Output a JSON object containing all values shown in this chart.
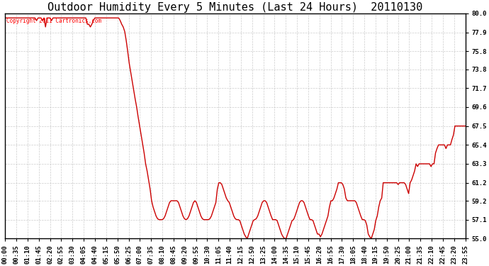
{
  "title": "Outdoor Humidity Every 5 Minutes (Last 24 Hours)  20110130",
  "copyright_text": "Copyright 2011 Cartronics.com",
  "line_color": "#cc0000",
  "bg_color": "#ffffff",
  "plot_bg_color": "#ffffff",
  "grid_color": "#c0c0c0",
  "ylim": [
    55.0,
    80.0
  ],
  "yticks": [
    55.0,
    57.1,
    59.2,
    61.2,
    63.3,
    65.4,
    67.5,
    69.6,
    71.7,
    73.8,
    75.8,
    77.9,
    80.0
  ],
  "title_fontsize": 11,
  "tick_fontsize": 6.5,
  "humidity": [
    79.5,
    79.5,
    79.5,
    79.5,
    79.5,
    79.5,
    79.5,
    79.5,
    79.5,
    79.5,
    79.5,
    79.5,
    79.5,
    79.5,
    79.5,
    79.5,
    79.5,
    79.5,
    79.5,
    79.5,
    79.5,
    79.2,
    79.5,
    79.5,
    79.5,
    79.2,
    79.5,
    78.5,
    79.5,
    79.5,
    79.5,
    79.2,
    79.5,
    79.5,
    79.5,
    79.5,
    79.5,
    79.5,
    79.5,
    79.5,
    79.5,
    79.5,
    79.5,
    79.5,
    79.5,
    79.5,
    79.5,
    79.5,
    79.5,
    79.5,
    79.5,
    79.5,
    79.5,
    79.5,
    79.5,
    78.8,
    78.8,
    78.5,
    78.8,
    79.2,
    79.5,
    79.5,
    79.5,
    79.5,
    79.5,
    79.5,
    79.5,
    79.5,
    79.5,
    79.5,
    79.5,
    79.5,
    79.5,
    79.5,
    79.5,
    79.5,
    79.5,
    79.2,
    78.8,
    78.5,
    78.0,
    77.0,
    75.8,
    74.5,
    73.5,
    72.5,
    71.5,
    70.5,
    69.6,
    68.5,
    67.5,
    66.5,
    65.5,
    64.5,
    63.3,
    62.5,
    61.5,
    60.5,
    59.2,
    58.5,
    58.0,
    57.5,
    57.2,
    57.1,
    57.1,
    57.1,
    57.2,
    57.5,
    58.0,
    58.5,
    59.0,
    59.2,
    59.2,
    59.2,
    59.2,
    59.2,
    59.0,
    58.5,
    58.0,
    57.5,
    57.2,
    57.1,
    57.2,
    57.5,
    58.0,
    58.5,
    59.0,
    59.2,
    59.0,
    58.5,
    58.0,
    57.5,
    57.2,
    57.1,
    57.1,
    57.1,
    57.1,
    57.2,
    57.5,
    58.0,
    58.5,
    59.0,
    60.5,
    61.2,
    61.2,
    61.0,
    60.5,
    60.0,
    59.5,
    59.2,
    59.0,
    58.5,
    58.0,
    57.5,
    57.2,
    57.1,
    57.1,
    57.0,
    56.5,
    56.0,
    55.5,
    55.2,
    55.0,
    55.5,
    56.0,
    56.5,
    57.0,
    57.1,
    57.2,
    57.5,
    58.0,
    58.5,
    59.0,
    59.2,
    59.2,
    59.0,
    58.5,
    58.0,
    57.5,
    57.1,
    57.1,
    57.1,
    57.0,
    56.5,
    56.0,
    55.5,
    55.2,
    55.0,
    55.0,
    55.5,
    56.0,
    56.5,
    57.0,
    57.1,
    57.5,
    58.0,
    58.5,
    59.0,
    59.2,
    59.2,
    59.0,
    58.5,
    58.0,
    57.5,
    57.1,
    57.1,
    57.0,
    56.5,
    56.0,
    55.5,
    55.5,
    55.2,
    55.5,
    56.0,
    56.5,
    57.0,
    57.5,
    58.5,
    59.2,
    59.2,
    59.5,
    60.0,
    60.5,
    61.2,
    61.2,
    61.2,
    61.0,
    60.5,
    59.5,
    59.2,
    59.2,
    59.2,
    59.2,
    59.2,
    59.2,
    59.0,
    58.5,
    58.0,
    57.5,
    57.1,
    57.1,
    57.0,
    56.5,
    55.5,
    55.2,
    55.0,
    55.5,
    56.0,
    57.0,
    57.5,
    58.5,
    59.2,
    59.5,
    61.2,
    61.2,
    61.2,
    61.2,
    61.2,
    61.2,
    61.2,
    61.2,
    61.2,
    61.2,
    61.0,
    61.2,
    61.2,
    61.2,
    61.2,
    61.0,
    60.5,
    60.0,
    61.2,
    61.5,
    62.0,
    62.5,
    63.3,
    63.0,
    63.3,
    63.3,
    63.3,
    63.3,
    63.3,
    63.3,
    63.3,
    63.3,
    63.0,
    63.3,
    63.3,
    64.5,
    65.0,
    65.4,
    65.4,
    65.4,
    65.4,
    65.4,
    65.0,
    65.4,
    65.4,
    65.4,
    66.0,
    66.5,
    67.5,
    67.5,
    67.5,
    67.5,
    67.5,
    67.5,
    67.5,
    67.5
  ],
  "x_tick_labels": [
    "00:00",
    "00:35",
    "01:10",
    "01:45",
    "02:20",
    "02:55",
    "03:30",
    "04:05",
    "04:40",
    "05:15",
    "05:50",
    "06:25",
    "07:00",
    "07:35",
    "08:10",
    "08:45",
    "09:20",
    "09:55",
    "10:30",
    "11:05",
    "11:40",
    "12:15",
    "12:50",
    "13:25",
    "14:00",
    "14:35",
    "15:10",
    "15:45",
    "16:20",
    "16:55",
    "17:30",
    "18:05",
    "18:40",
    "19:15",
    "19:50",
    "20:25",
    "21:00",
    "21:35",
    "22:10",
    "22:45",
    "23:20",
    "23:55"
  ]
}
